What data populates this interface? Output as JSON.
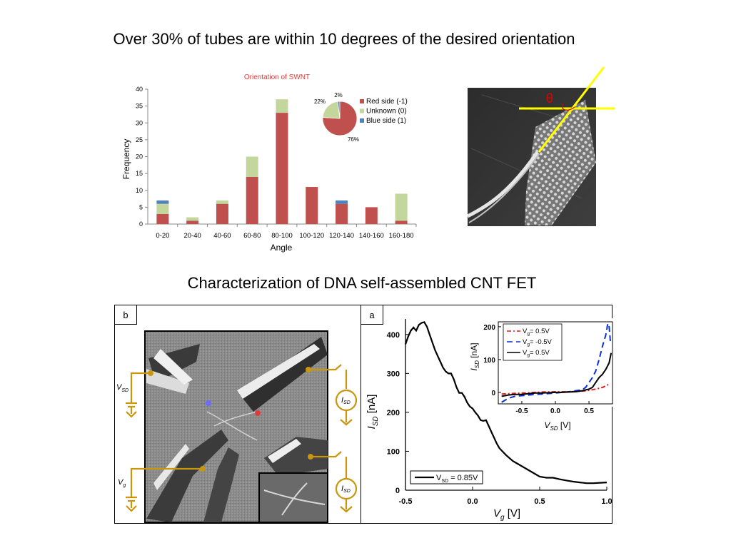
{
  "slide": {
    "title_top": "Over 30% of tubes are within 10 degrees of the desired orientation",
    "title_bottom": "Characterization of DNA self-assembled CNT FET"
  },
  "colors": {
    "red": "#c0504d",
    "green": "#c3d69b",
    "blue": "#4f81bd",
    "gold": "#c9960c",
    "gray_sem": "#7c7c7c"
  },
  "chart_data": [
    {
      "type": "bar",
      "stacked": true,
      "title": "Orientation of SWNT",
      "xlabel": "Angle",
      "ylabel": "Frequency",
      "ylim": [
        0,
        40
      ],
      "yticks": [
        "0",
        "5",
        "10",
        "15",
        "20",
        "25",
        "30",
        "35",
        "40"
      ],
      "categories": [
        "0-20",
        "20-40",
        "40-60",
        "60-80",
        "80-100",
        "100-120",
        "120-140",
        "140-160",
        "160-180"
      ],
      "series": [
        {
          "name": "Red side (-1)",
          "color": "#c0504d",
          "values": [
            3,
            1,
            6,
            14,
            33,
            11,
            6,
            5,
            1
          ]
        },
        {
          "name": "Unknown (0)",
          "color": "#c3d69b",
          "values": [
            3,
            1,
            1,
            6,
            4,
            0,
            0,
            0,
            8
          ]
        },
        {
          "name": "Blue side (1)",
          "color": "#4f81bd",
          "values": [
            1,
            0,
            0,
            0,
            0,
            0,
            1,
            0,
            0
          ]
        }
      ],
      "legend_position": "top-right",
      "grid": false
    },
    {
      "type": "pie",
      "labels": [
        "Red side (-1)",
        "Unknown (0)",
        "Blue side (1)"
      ],
      "values": [
        76,
        22,
        2
      ],
      "value_labels": [
        "76%",
        "22%",
        "2%"
      ],
      "colors": [
        "#c0504d",
        "#c3d69b",
        "#4f81bd"
      ]
    },
    {
      "type": "line",
      "panel_label": "a",
      "xlabel_sym": "V",
      "xlabel_sub": "g",
      "xlabel_unit": " [V]",
      "ylabel_sym": "I",
      "ylabel_sub": "SD",
      "ylabel_unit": " [nA]",
      "xlim": [
        -0.5,
        1.0
      ],
      "ylim": [
        0,
        440
      ],
      "xticks": [
        "-0.5",
        "0.0",
        "0.5",
        "1.0"
      ],
      "yticks": [
        "0",
        "100",
        "200",
        "300",
        "400"
      ],
      "legend_label": "V",
      "legend_sub": "SD",
      "legend_value": " = 0.85V",
      "x": [
        -0.5,
        -0.48,
        -0.46,
        -0.44,
        -0.42,
        -0.4,
        -0.38,
        -0.36,
        -0.34,
        -0.32,
        -0.3,
        -0.28,
        -0.26,
        -0.24,
        -0.22,
        -0.2,
        -0.18,
        -0.16,
        -0.14,
        -0.12,
        -0.1,
        -0.08,
        -0.06,
        -0.04,
        -0.02,
        0.0,
        0.02,
        0.04,
        0.06,
        0.08,
        0.1,
        0.12,
        0.14,
        0.16,
        0.18,
        0.2,
        0.25,
        0.3,
        0.35,
        0.4,
        0.45,
        0.5,
        0.55,
        0.6,
        0.65,
        0.7,
        0.75,
        0.8,
        0.85,
        0.9,
        0.95,
        1.0
      ],
      "y": [
        375,
        395,
        410,
        418,
        410,
        425,
        430,
        432,
        420,
        400,
        380,
        360,
        345,
        330,
        315,
        305,
        300,
        300,
        285,
        265,
        250,
        250,
        240,
        225,
        215,
        210,
        200,
        192,
        180,
        178,
        180,
        165,
        150,
        135,
        120,
        108,
        90,
        75,
        65,
        55,
        45,
        35,
        32,
        32,
        28,
        25,
        22,
        20,
        18,
        18,
        19,
        20
      ]
    },
    {
      "type": "line",
      "inset": true,
      "xlabel_sym": "V",
      "xlabel_sub": "SD",
      "xlabel_unit": " [V]",
      "ylabel_sym": "I",
      "ylabel_sub": "SD",
      "ylabel_unit": " [nA]",
      "xlim": [
        -0.85,
        0.85
      ],
      "ylim": [
        -35,
        215
      ],
      "xticks": [
        "-0.5",
        "0.0",
        "0.5"
      ],
      "yticks": [
        "0",
        "100",
        "200"
      ],
      "series": [
        {
          "label": "V",
          "sub": "g",
          "value": "= 0.5V",
          "color": "#e41a1c",
          "dash": "6,3,2,3",
          "x": [
            -0.8,
            -0.6,
            -0.4,
            -0.2,
            0.0,
            0.2,
            0.4,
            0.5,
            0.6,
            0.7,
            0.8
          ],
          "y": [
            -5,
            -3,
            -1,
            1,
            2,
            2,
            4,
            6,
            10,
            15,
            25
          ]
        },
        {
          "label": "V",
          "sub": "g",
          "value": "= -0.5V",
          "color": "#0b2fd6",
          "dash": "8,5",
          "x": [
            -0.8,
            -0.7,
            -0.6,
            -0.4,
            -0.2,
            0.0,
            0.2,
            0.3,
            0.4,
            0.45,
            0.5,
            0.55,
            0.6,
            0.65,
            0.7,
            0.75,
            0.78,
            0.8,
            0.82
          ],
          "y": [
            -30,
            -18,
            -12,
            -8,
            -5,
            -2,
            2,
            5,
            8,
            15,
            30,
            45,
            65,
            100,
            140,
            175,
            210,
            200,
            150
          ]
        },
        {
          "label": "V",
          "sub": "g",
          "value": "= 0.5V",
          "color": "#000000",
          "dash": "",
          "x": [
            -0.8,
            -0.7,
            -0.6,
            -0.5,
            -0.4,
            -0.3,
            -0.2,
            -0.1,
            0.0,
            0.1,
            0.2,
            0.3,
            0.4,
            0.5,
            0.55,
            0.6,
            0.65,
            0.7,
            0.75,
            0.8,
            0.83
          ],
          "y": [
            -12,
            -8,
            -6,
            -6,
            -4,
            -2,
            -2,
            -1,
            0,
            0,
            1,
            2,
            5,
            10,
            15,
            30,
            45,
            55,
            70,
            90,
            120
          ]
        }
      ]
    }
  ],
  "panels": {
    "b_label": "b",
    "a_label": "a",
    "circuit": {
      "vsd_sym": "V",
      "vsd_sub": "SD",
      "vg_sym": "V",
      "vg_sub": "g",
      "isd_sym": "I",
      "isd_sub": "SD"
    },
    "afm_theta": "θ"
  }
}
